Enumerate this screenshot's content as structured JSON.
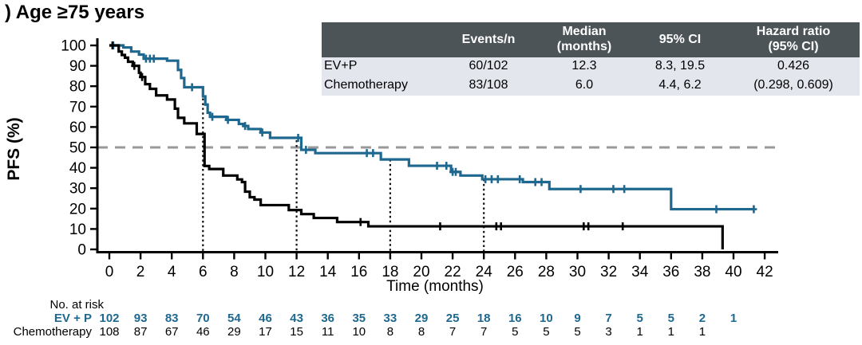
{
  "title": ") Age ≥75 years",
  "summary_table": {
    "headers": [
      "",
      "Events/n",
      "Median\n(months)",
      "95% CI",
      "Hazard ratio\n(95% CI)"
    ],
    "rows": [
      [
        "EV+P",
        "60/102",
        "12.3",
        "8.3, 19.5",
        "0.426"
      ],
      [
        "Chemotherapy",
        "83/108",
        "6.0",
        "4.4, 6.2",
        "(0.298, 0.609)"
      ]
    ]
  },
  "chart_data": {
    "type": "line",
    "subtype": "kaplan-meier-step",
    "title": ") Age ≥75 years",
    "xlabel": "Time (months)",
    "ylabel": "PFS (%)",
    "xlim": [
      0,
      42
    ],
    "xtick_step": 2,
    "ylim": [
      0,
      100
    ],
    "ytick_step": 10,
    "grid": false,
    "reference_line_pct": 50,
    "median_markers": [
      {
        "t": 6,
        "top_pct": 74.0
      },
      {
        "t": 12,
        "top_pct": 53.5
      },
      {
        "t": 18,
        "top_pct": 44.1
      },
      {
        "t": 24,
        "top_pct": 34.4
      }
    ],
    "series": [
      {
        "name": "EV+P",
        "color": "#1e6890",
        "median_months": 12.3,
        "steps": [
          [
            0,
            100
          ],
          [
            0.9,
            99
          ],
          [
            1.4,
            97
          ],
          [
            1.9,
            95.5
          ],
          [
            2.2,
            93.5
          ],
          [
            3.7,
            92.5
          ],
          [
            4.4,
            88
          ],
          [
            4.6,
            84
          ],
          [
            4.8,
            79.5
          ],
          [
            6.0,
            75
          ],
          [
            6.15,
            71
          ],
          [
            6.3,
            67
          ],
          [
            6.45,
            65
          ],
          [
            7.5,
            63.5
          ],
          [
            8.3,
            61.5
          ],
          [
            8.6,
            60.5
          ],
          [
            8.9,
            59
          ],
          [
            9.7,
            57.3
          ],
          [
            10.3,
            54.7
          ],
          [
            12.3,
            48.8
          ],
          [
            13.2,
            47.2
          ],
          [
            17.4,
            44.1
          ],
          [
            19.2,
            41
          ],
          [
            21.9,
            38
          ],
          [
            22.5,
            36.2
          ],
          [
            23.9,
            34.4
          ],
          [
            26.5,
            33
          ],
          [
            28.2,
            29.6
          ],
          [
            36.0,
            19.7
          ]
        ],
        "end_t": 41.3,
        "censors": [
          [
            0.25,
            100
          ],
          [
            2.35,
            93.5
          ],
          [
            2.6,
            93.5
          ],
          [
            2.85,
            93.5
          ],
          [
            5.3,
            79.5
          ],
          [
            6.6,
            65
          ],
          [
            7.6,
            63.5
          ],
          [
            8.7,
            60.5
          ],
          [
            9.8,
            57.3
          ],
          [
            12.1,
            54.7
          ],
          [
            12.6,
            48.8
          ],
          [
            16.5,
            47.2
          ],
          [
            16.9,
            47.2
          ],
          [
            21.0,
            41
          ],
          [
            21.6,
            41
          ],
          [
            22.0,
            38
          ],
          [
            22.2,
            38
          ],
          [
            24.1,
            34.4
          ],
          [
            24.5,
            34.4
          ],
          [
            24.9,
            34.4
          ],
          [
            26.3,
            34.4
          ],
          [
            27.3,
            33
          ],
          [
            27.7,
            33
          ],
          [
            30.2,
            29.6
          ],
          [
            32.3,
            29.6
          ],
          [
            33.0,
            29.6
          ],
          [
            38.9,
            19.7
          ],
          [
            41.3,
            19.7
          ]
        ]
      },
      {
        "name": "Chemotherapy",
        "color": "#000000",
        "median_months": 6.0,
        "steps": [
          [
            0,
            100
          ],
          [
            0.6,
            97
          ],
          [
            0.8,
            95.3
          ],
          [
            1.0,
            94
          ],
          [
            1.2,
            92
          ],
          [
            1.5,
            90
          ],
          [
            1.9,
            86.6
          ],
          [
            2.0,
            84.5
          ],
          [
            2.3,
            81
          ],
          [
            2.6,
            78.7
          ],
          [
            3.0,
            75.5
          ],
          [
            3.7,
            73.5
          ],
          [
            4.2,
            69
          ],
          [
            4.4,
            64.5
          ],
          [
            4.8,
            61.8
          ],
          [
            5.6,
            56.6
          ],
          [
            6.1,
            40.9
          ],
          [
            6.4,
            39.4
          ],
          [
            7.3,
            36.2
          ],
          [
            8.2,
            34.3
          ],
          [
            8.5,
            33
          ],
          [
            8.7,
            28.3
          ],
          [
            9.0,
            25.6
          ],
          [
            9.3,
            24.4
          ],
          [
            9.7,
            21.7
          ],
          [
            11.5,
            19.3
          ],
          [
            12.3,
            17.3
          ],
          [
            13.1,
            15.4
          ],
          [
            14.6,
            13.4
          ],
          [
            16.6,
            11.3
          ],
          [
            39.3,
            0
          ]
        ],
        "end_t": 39.3,
        "censors": [
          [
            0.2,
            100
          ],
          [
            1.6,
            90
          ],
          [
            2.1,
            84.5
          ],
          [
            16.1,
            13.4
          ],
          [
            21.2,
            11.3
          ],
          [
            24.8,
            11.3
          ],
          [
            25.1,
            11.3
          ],
          [
            30.4,
            11.3
          ],
          [
            30.7,
            11.3
          ],
          [
            32.9,
            11.3
          ]
        ]
      }
    ]
  },
  "risk_table": {
    "label": "No. at risk",
    "times": [
      0,
      2,
      4,
      6,
      8,
      10,
      12,
      14,
      16,
      18,
      20,
      22,
      24,
      26,
      28,
      30,
      32,
      34,
      36,
      38,
      40
    ],
    "rows": [
      {
        "name": "EV + P",
        "color": "#1e6890",
        "bold": true,
        "values": [
          102,
          93,
          83,
          70,
          54,
          46,
          43,
          36,
          35,
          33,
          29,
          25,
          18,
          16,
          10,
          9,
          7,
          5,
          5,
          2,
          1
        ]
      },
      {
        "name": "Chemotherapy",
        "color": "#000000",
        "bold": false,
        "values": [
          108,
          87,
          67,
          46,
          29,
          17,
          15,
          11,
          10,
          8,
          8,
          7,
          7,
          5,
          5,
          5,
          3,
          1,
          1,
          1
        ]
      }
    ]
  },
  "colors": {
    "ev_p": "#1e6890",
    "chemotherapy": "#000000",
    "reference_dash": "#999999",
    "table_header_bg": "#4c5457",
    "table_row_bg": "#e4e6ee"
  }
}
